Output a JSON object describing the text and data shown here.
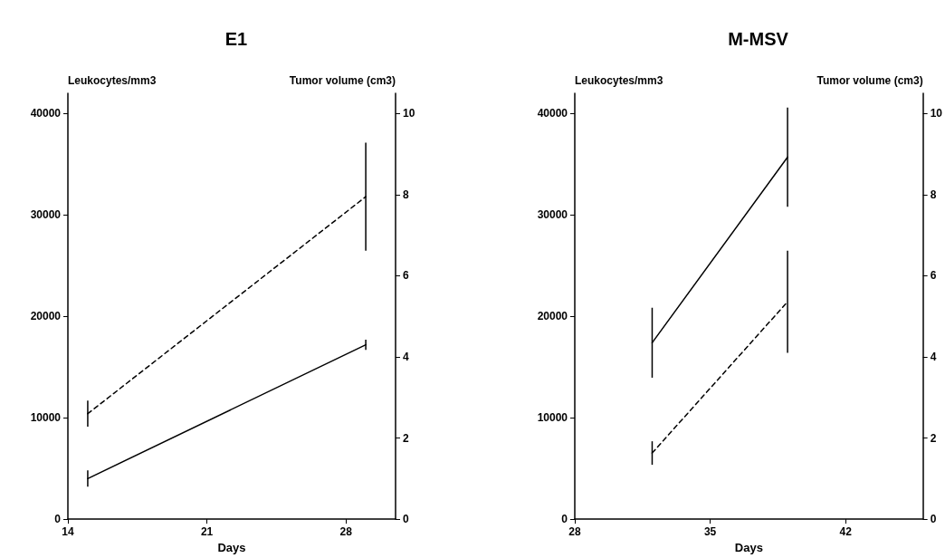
{
  "chart_data": [
    {
      "type": "line",
      "title": "E1",
      "xlabel": "Days",
      "ylabel": "Leukocytes/mm3",
      "y2label": "Tumor volume (cm3)",
      "x": [
        15,
        29
      ],
      "xlim": [
        14,
        30.5
      ],
      "xticks": [
        14,
        21,
        28
      ],
      "ylim": [
        0,
        42000
      ],
      "yticks": [
        0,
        10000,
        20000,
        30000,
        40000
      ],
      "y2lim": [
        0,
        10.5
      ],
      "y2ticks": [
        0,
        2,
        4,
        6,
        8,
        10
      ],
      "marker": "none",
      "series": [
        {
          "color": "#000000",
          "values": [
            4000,
            17200
          ],
          "errors": [
            800,
            500
          ],
          "line_style": "solid"
        },
        {
          "color": "#000000",
          "values": [
            2.6,
            7.95
          ],
          "errors": [
            0.32,
            1.33
          ],
          "line_style": "dashed",
          "axis": "y2"
        }
      ]
    },
    {
      "type": "line",
      "title": "M-MSV",
      "xlabel": "Days",
      "ylabel": "Leukocytes/mm3",
      "y2label": "Tumor volume (cm3)",
      "x": [
        32,
        39
      ],
      "xlim": [
        28,
        46
      ],
      "xticks": [
        28,
        35,
        42
      ],
      "ylim": [
        0,
        42000
      ],
      "yticks": [
        0,
        10000,
        20000,
        30000,
        40000
      ],
      "y2lim": [
        0,
        10.5
      ],
      "y2ticks": [
        0,
        2,
        4,
        6,
        8,
        10
      ],
      "marker": "none",
      "series": [
        {
          "color": "#000000",
          "values": [
            17400,
            35700
          ],
          "errors": [
            3450,
            4900
          ],
          "line_style": "solid"
        },
        {
          "color": "#000000",
          "values": [
            1.63,
            5.36
          ],
          "errors": [
            0.29,
            1.26
          ],
          "line_style": "dashed",
          "axis": "y2"
        }
      ]
    }
  ]
}
